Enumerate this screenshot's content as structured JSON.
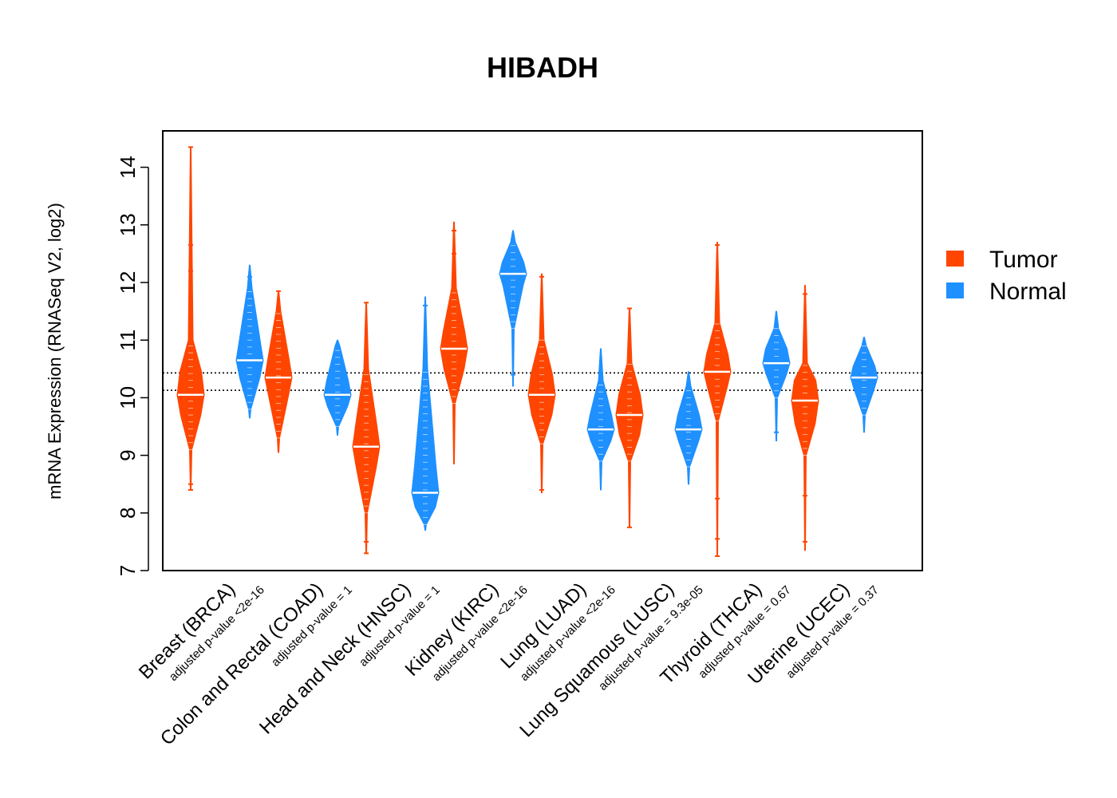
{
  "chart_data": {
    "type": "violin",
    "title": "HIBADH",
    "ylabel": "mRNA Expression (RNASeq V2, log2)",
    "xlabel": "",
    "ylim": [
      7,
      14.5
    ],
    "yticks": [
      7,
      8,
      9,
      10,
      11,
      12,
      13,
      14
    ],
    "yticks_labels": [
      "7",
      "8",
      "9",
      "10",
      "11",
      "12",
      "13",
      "14"
    ],
    "reference_lines": [
      10.13,
      10.43
    ],
    "legend": [
      {
        "name": "Tumor",
        "color": "#FF4500"
      },
      {
        "name": "Normal",
        "color": "#1E90FF"
      }
    ],
    "categories": [
      {
        "label": "Breast (BRCA)",
        "pvalue": "adjusted p-value <2e-16",
        "tumor": {
          "min": 8.4,
          "max": 14.35,
          "median": 10.05,
          "q1": 9.7,
          "q3": 10.45,
          "core_low": 9.1,
          "core_high": 11.0,
          "outliers": [
            14.35,
            12.65,
            12.2,
            8.5,
            8.4
          ]
        },
        "normal": {
          "min": 9.65,
          "max": 12.3,
          "median": 10.65,
          "q1": 10.35,
          "q3": 10.95,
          "core_low": 9.8,
          "core_high": 11.9,
          "outliers": [
            12.1
          ]
        }
      },
      {
        "label": "Colon and Rectal (COAD)",
        "pvalue": "adjusted p-value = 1",
        "tumor": {
          "min": 9.05,
          "max": 11.85,
          "median": 10.35,
          "q1": 10.05,
          "q3": 10.65,
          "core_low": 9.3,
          "core_high": 11.5,
          "outliers": [
            11.85
          ]
        },
        "normal": {
          "min": 9.35,
          "max": 11.0,
          "median": 10.05,
          "q1": 9.85,
          "q3": 10.3,
          "core_low": 9.5,
          "core_high": 10.9,
          "outliers": []
        }
      },
      {
        "label": "Head and Neck (HNSC)",
        "pvalue": "adjusted p-value = 1",
        "tumor": {
          "min": 7.3,
          "max": 11.65,
          "median": 9.15,
          "q1": 8.8,
          "q3": 9.5,
          "core_low": 8.0,
          "core_high": 10.5,
          "outliers": [
            11.65,
            7.5,
            7.3
          ]
        },
        "normal": {
          "min": 7.7,
          "max": 11.75,
          "median": 8.35,
          "q1": 8.1,
          "q3": 8.8,
          "core_low": 7.8,
          "core_high": 10.5,
          "outliers": [
            11.6
          ]
        }
      },
      {
        "label": "Kidney (KIRC)",
        "pvalue": "adjusted p-value <2e-16",
        "tumor": {
          "min": 8.85,
          "max": 13.05,
          "median": 10.85,
          "q1": 10.5,
          "q3": 11.15,
          "core_low": 9.9,
          "core_high": 11.9,
          "outliers": [
            12.9,
            12.5
          ]
        },
        "normal": {
          "min": 10.2,
          "max": 12.9,
          "median": 12.15,
          "q1": 11.95,
          "q3": 12.35,
          "core_low": 11.2,
          "core_high": 12.7,
          "outliers": [
            10.4
          ]
        }
      },
      {
        "label": "Lung (LUAD)",
        "pvalue": "adjusted p-value <2e-16",
        "tumor": {
          "min": 8.35,
          "max": 12.15,
          "median": 10.05,
          "q1": 9.7,
          "q3": 10.4,
          "core_low": 9.2,
          "core_high": 11.0,
          "outliers": [
            12.1,
            8.4
          ]
        },
        "normal": {
          "min": 8.4,
          "max": 10.85,
          "median": 9.45,
          "q1": 9.25,
          "q3": 9.7,
          "core_low": 8.9,
          "core_high": 10.3,
          "outliers": [
            10.4
          ]
        }
      },
      {
        "label": "Lung Squamous (LUSC)",
        "pvalue": "adjusted p-value = 9.3e-05",
        "tumor": {
          "min": 7.75,
          "max": 11.55,
          "median": 9.7,
          "q1": 9.35,
          "q3": 10.05,
          "core_low": 8.9,
          "core_high": 10.6,
          "outliers": [
            11.55,
            7.75
          ]
        },
        "normal": {
          "min": 8.5,
          "max": 10.45,
          "median": 9.45,
          "q1": 9.25,
          "q3": 9.7,
          "core_low": 8.8,
          "core_high": 10.2,
          "outliers": []
        }
      },
      {
        "label": "Thyroid (THCA)",
        "pvalue": "adjusted p-value = 0.67",
        "tumor": {
          "min": 7.25,
          "max": 12.7,
          "median": 10.45,
          "q1": 10.2,
          "q3": 10.75,
          "core_low": 9.6,
          "core_high": 11.3,
          "outliers": [
            12.65,
            8.25,
            7.55,
            7.25
          ]
        },
        "normal": {
          "min": 9.25,
          "max": 11.5,
          "median": 10.6,
          "q1": 10.4,
          "q3": 10.85,
          "core_low": 10.0,
          "core_high": 11.2,
          "outliers": [
            9.4
          ]
        }
      },
      {
        "label": "Uterine (UCEC)",
        "pvalue": "adjusted p-value = 0.37",
        "tumor": {
          "min": 7.35,
          "max": 11.95,
          "median": 9.95,
          "q1": 9.55,
          "q3": 10.3,
          "core_low": 9.0,
          "core_high": 10.6,
          "outliers": [
            11.8,
            8.3,
            7.5
          ]
        },
        "normal": {
          "min": 9.4,
          "max": 11.05,
          "median": 10.35,
          "q1": 10.15,
          "q3": 10.55,
          "core_low": 9.7,
          "core_high": 10.9,
          "outliers": []
        }
      }
    ]
  }
}
